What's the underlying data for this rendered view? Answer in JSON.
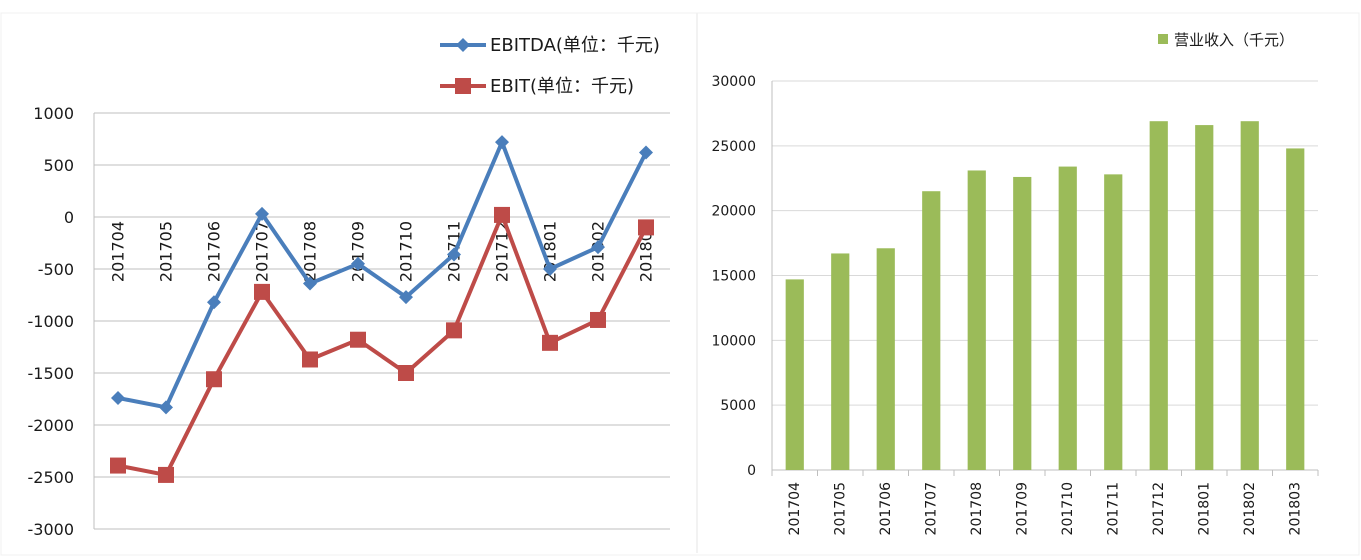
{
  "chart_data": [
    {
      "type": "line",
      "categories": [
        "201704",
        "201705",
        "201706",
        "201707",
        "201708",
        "201709",
        "201710",
        "201711",
        "201712",
        "201801",
        "201802",
        "201803"
      ],
      "series": [
        {
          "name": "EBITDA(单位：千元)",
          "color": "#4a7ebb",
          "marker": "diamond",
          "values": [
            -1740,
            -1830,
            -820,
            30,
            -640,
            -450,
            -770,
            -360,
            720,
            -500,
            -290,
            620
          ]
        },
        {
          "name": "EBIT(单位：千元)",
          "color": "#be4b48",
          "marker": "square",
          "values": [
            -2390,
            -2480,
            -1560,
            -720,
            -1370,
            -1180,
            -1500,
            -1090,
            20,
            -1210,
            -990,
            -100
          ]
        }
      ],
      "ylim": [
        -3000,
        1000
      ],
      "yticks": [
        "1000",
        "500",
        "0",
        "-500",
        "-1000",
        "-1500",
        "-2000",
        "-2500",
        "-3000"
      ],
      "grid": true,
      "legend_position": "top-right"
    },
    {
      "type": "bar",
      "categories": [
        "201704",
        "201705",
        "201706",
        "201707",
        "201708",
        "201709",
        "201710",
        "201711",
        "201712",
        "201801",
        "201802",
        "201803"
      ],
      "series": [
        {
          "name": "营业收入（千元）",
          "color": "#9bbb59",
          "values": [
            14700,
            16700,
            17100,
            21500,
            23100,
            22600,
            23400,
            22800,
            26900,
            26600,
            26900,
            24800
          ]
        }
      ],
      "ylim": [
        0,
        30000
      ],
      "yticks": [
        "30000",
        "25000",
        "20000",
        "15000",
        "10000",
        "5000",
        "0"
      ],
      "grid": true,
      "legend_position": "top-right"
    }
  ]
}
